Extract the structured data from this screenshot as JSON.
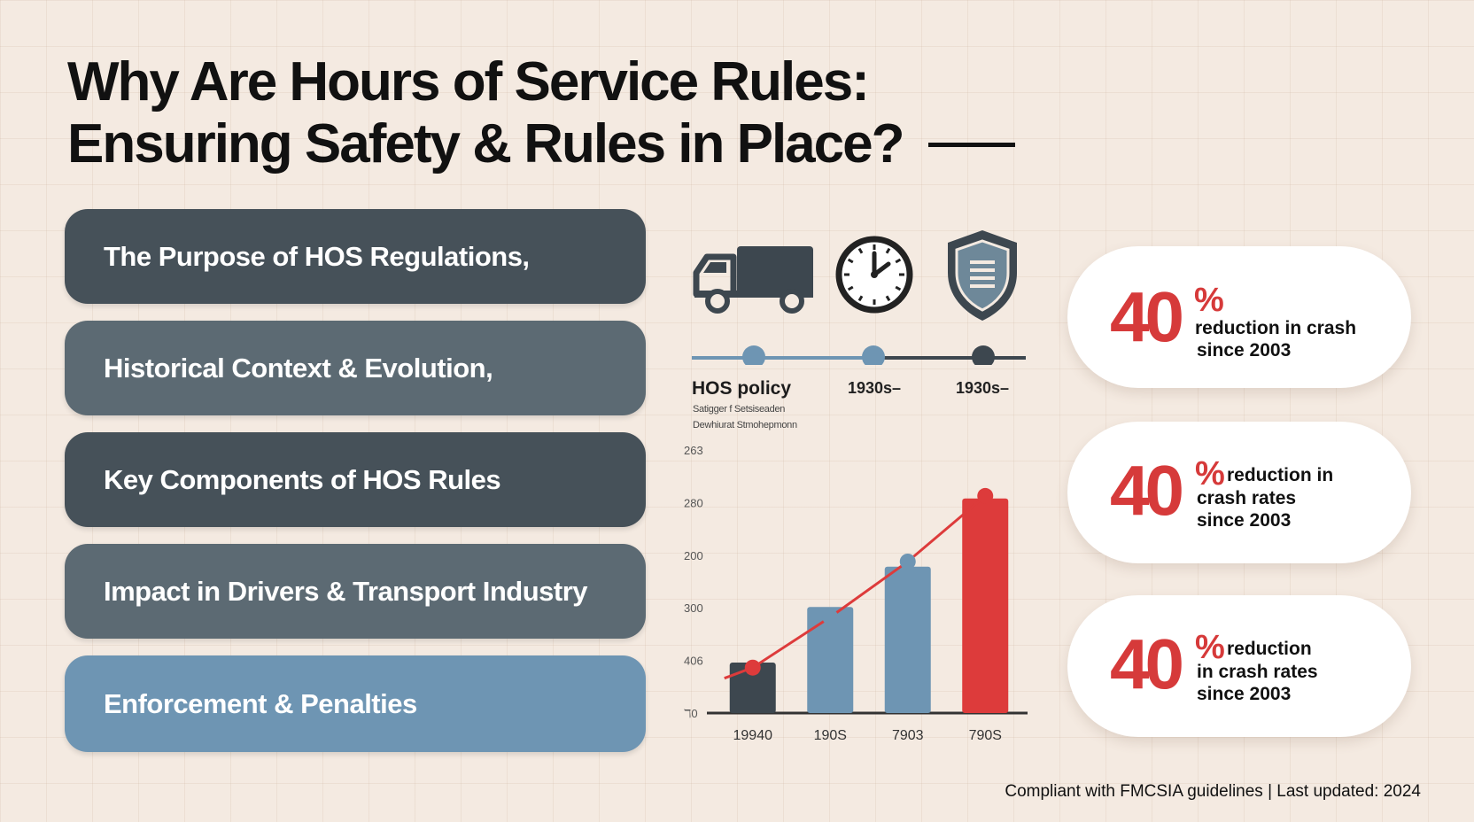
{
  "header": {
    "title_line1": "Why Are Hours of Service Rules:",
    "title_line2": "Ensuring Safety & Rules in Place?"
  },
  "topics": [
    {
      "label": "The Purpose of HOS Regulations,"
    },
    {
      "label": "Historical Context & Evolution,"
    },
    {
      "label": "Key Components of HOS Rules"
    },
    {
      "label": "Impact in Drivers & Transport Industry"
    },
    {
      "label": "Enforcement & Penalties"
    }
  ],
  "icons": [
    "truck-icon",
    "clock-icon",
    "shield-icon"
  ],
  "timeline": {
    "main_label": "HOS policy",
    "sub_line1": "Satigger f Setsiseaden",
    "sub_line2": "Dewhiurat Stmohepmonn",
    "dates": [
      "1930s–",
      "1930s–"
    ]
  },
  "chart_data": {
    "type": "bar",
    "categories": [
      "19940",
      "190S",
      "7903",
      "790S"
    ],
    "values": [
      20,
      42,
      58,
      85
    ],
    "line_values": [
      18,
      38,
      60,
      86
    ],
    "ytick_labels": [
      "ℸ0",
      "406",
      "300",
      "200",
      "280",
      "263"
    ],
    "colors": {
      "bars": [
        "#3d474f",
        "#6e95b3",
        "#6e95b3",
        "#dd3b3b"
      ],
      "line": "#dd3b3b",
      "points": [
        "#dd3b3b",
        "#6e95b3",
        "#6e95b3",
        "#dd3b3b"
      ]
    }
  },
  "stats": [
    {
      "number": "40",
      "percent": "%",
      "line1": "",
      "line2": "reduction in crash",
      "line3": "since 2003"
    },
    {
      "number": "40",
      "percent": "%",
      "line1": "reduction in",
      "line2": "crash rates",
      "line3": "since 2003"
    },
    {
      "number": "40",
      "percent": "%",
      "line1": "reduction",
      "line2": "in crash rates",
      "line3": "since 2003"
    }
  ],
  "footer": {
    "text": "Compliant with FMCSIA guidelines | Last updated: 2024"
  },
  "colors": {
    "accent_red": "#d63a3a",
    "slate_dark": "#465159",
    "slate_light": "#5c6a73",
    "steel_blue": "#6e95b3",
    "background": "#f4eae1"
  }
}
